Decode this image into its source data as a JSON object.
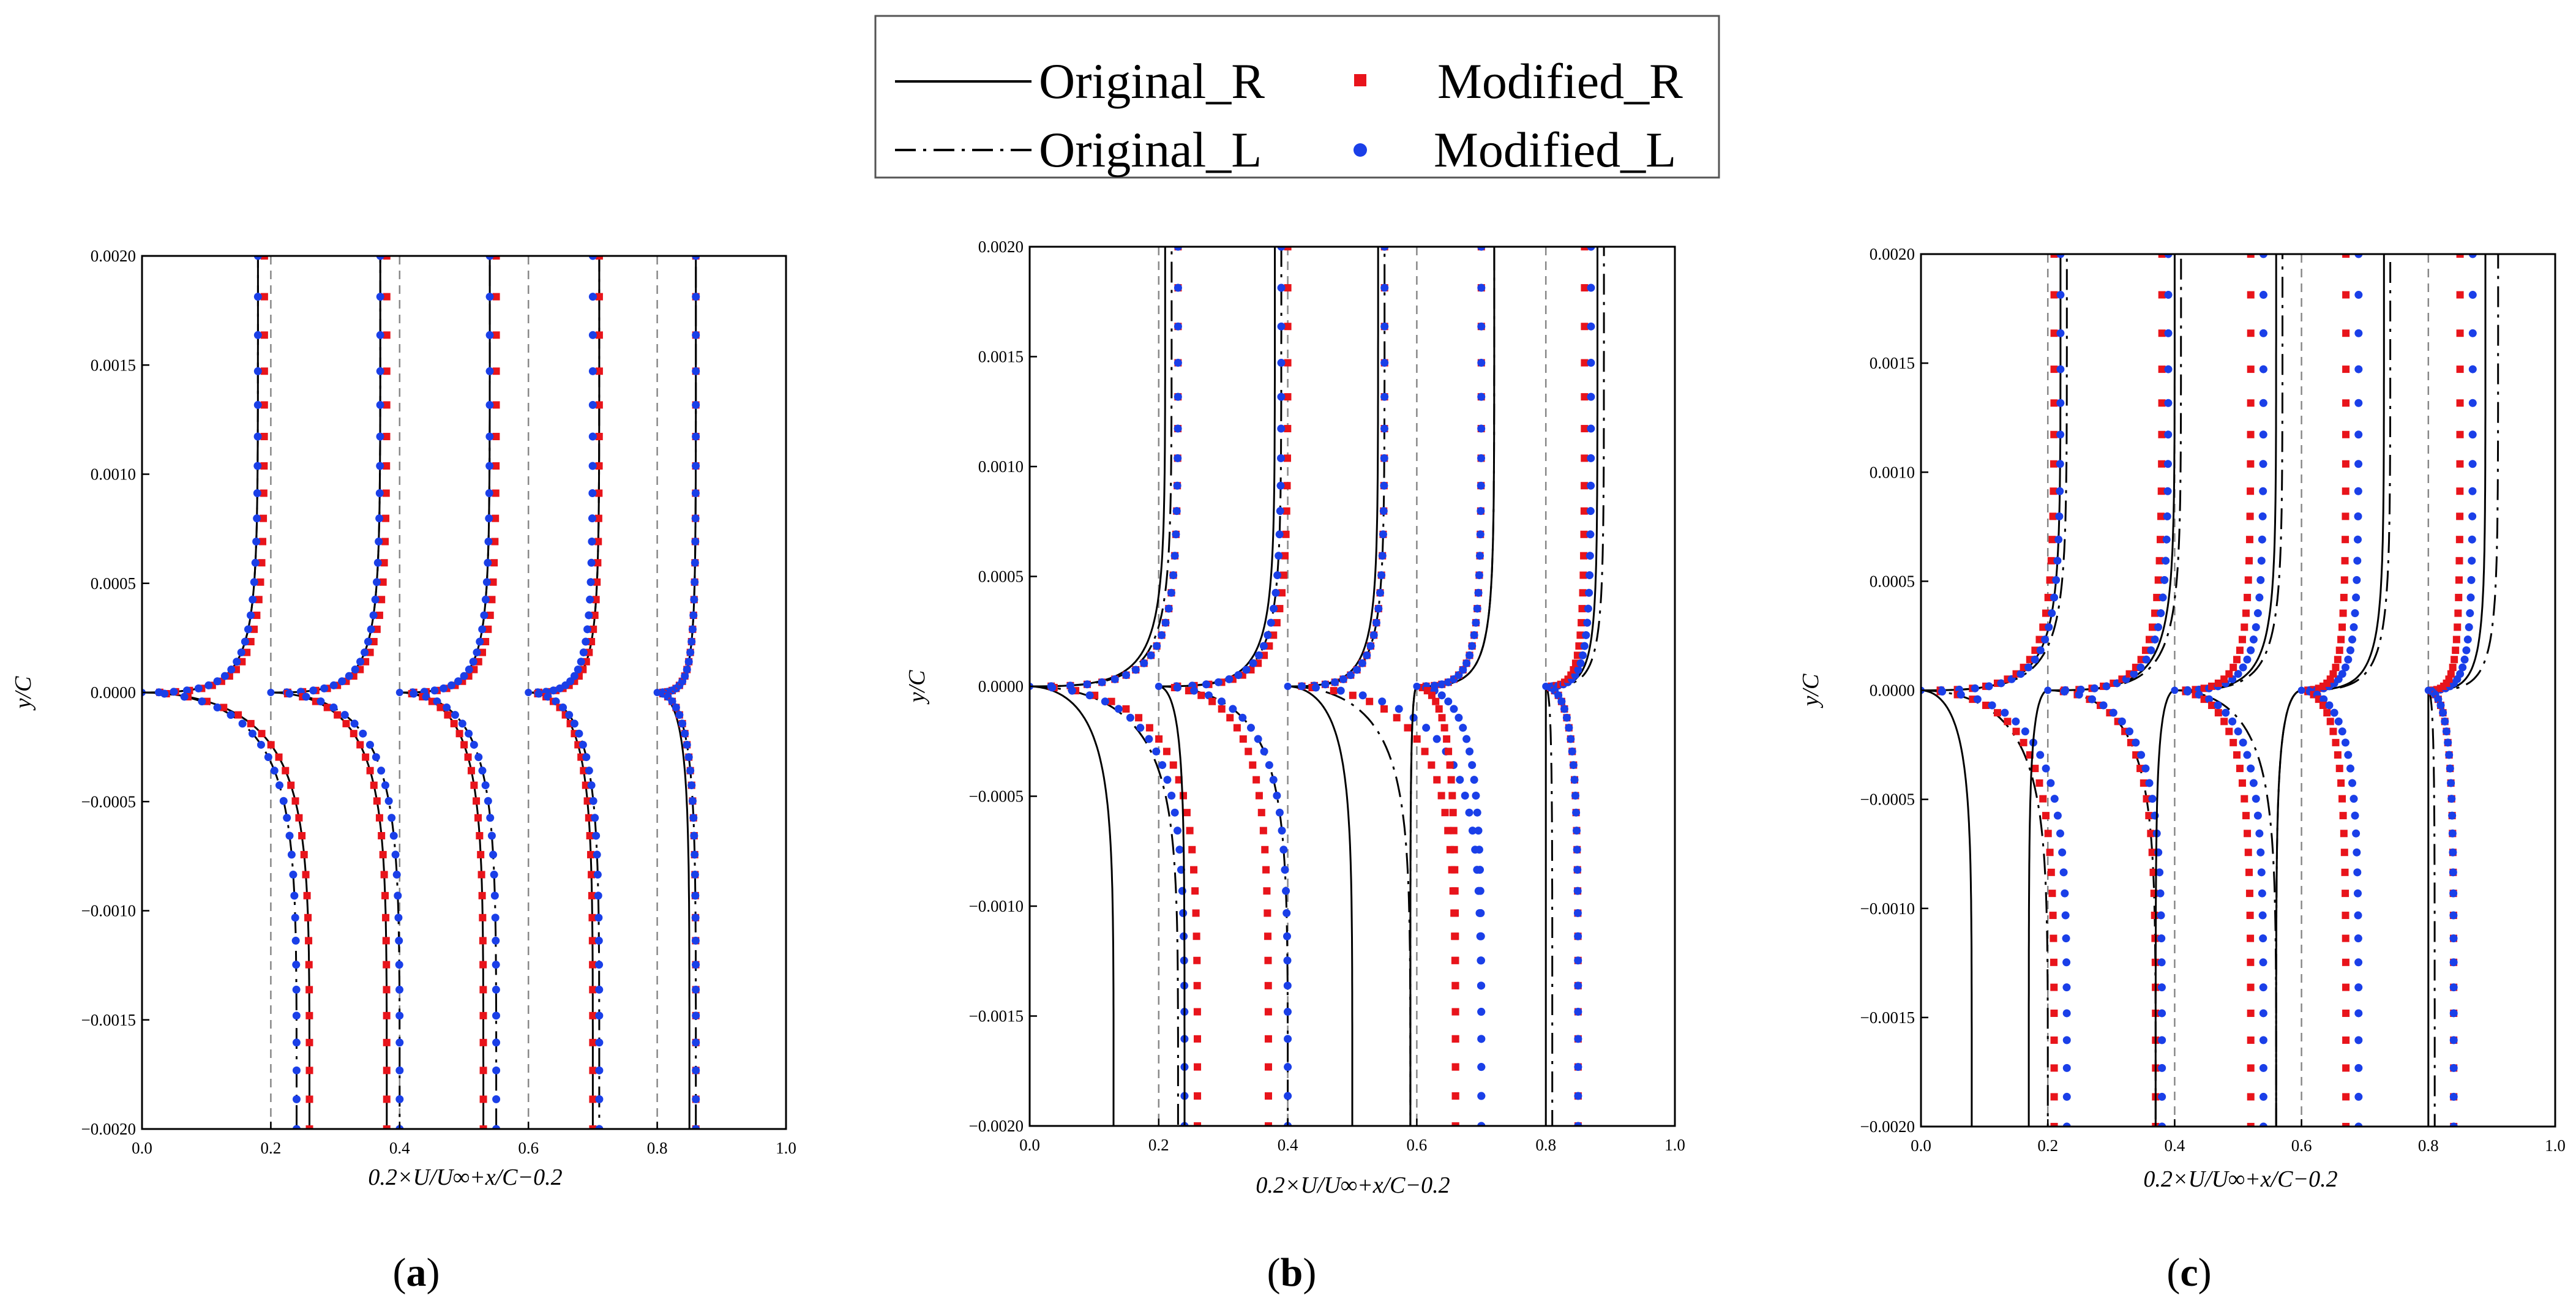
{
  "legend": {
    "entries": [
      {
        "label": "Original_R",
        "style": "solid"
      },
      {
        "label": "Original_L",
        "style": "dashdot"
      },
      {
        "label": "Modified_R",
        "style": "square",
        "color": "#e8141b"
      },
      {
        "label": "Modified_L",
        "style": "circle",
        "color": "#1a3fe8"
      }
    ]
  },
  "colors": {
    "modified_r": "#e8141b",
    "modified_l": "#1a3fe8",
    "line": "#000000",
    "ref": "#888888"
  },
  "chart_data": [
    {
      "type": "line",
      "panel_label": "(a)",
      "label_parts": [
        "(",
        "a",
        ")"
      ],
      "xlabel": "0.2×U/U∞+x/C−0.2",
      "ylabel": "y/C",
      "xlim": [
        0.0,
        1.0
      ],
      "ylim": [
        -0.002,
        0.002
      ],
      "x_ticks": [
        "0.0",
        "0.2",
        "0.4",
        "0.6",
        "0.8",
        "1.0"
      ],
      "y_ticks": [
        "-0.0020",
        "-0.0015",
        "-0.0010",
        "-0.0005",
        "0.0000",
        "0.0005",
        "0.0010",
        "0.0015",
        "0.0020"
      ],
      "reference_lines_x": [
        0.2,
        0.4,
        0.6,
        0.8
      ],
      "stations": [
        0.0,
        0.2,
        0.4,
        0.6,
        0.8
      ],
      "edge_values": {
        "original_r_upper": [
          0.18,
          0.37,
          0.54,
          0.71,
          0.86
        ],
        "original_l_upper": [
          0.18,
          0.37,
          0.54,
          0.71,
          0.86
        ],
        "modified_r_upper": [
          0.19,
          0.38,
          0.55,
          0.71,
          0.86
        ],
        "modified_l_upper": [
          0.18,
          0.37,
          0.54,
          0.7,
          0.86
        ],
        "original_r_lower": [
          0.26,
          0.38,
          0.53,
          0.7,
          0.85
        ],
        "original_l_lower": [
          0.24,
          0.4,
          0.55,
          0.71,
          0.86
        ],
        "modified_r_lower": [
          0.26,
          0.38,
          0.53,
          0.7,
          0.86
        ],
        "modified_l_lower": [
          0.24,
          0.4,
          0.55,
          0.71,
          0.86
        ]
      }
    },
    {
      "type": "line",
      "panel_label": "(b)",
      "label_parts": [
        "(",
        "b",
        ")"
      ],
      "xlabel": "0.2×U/U∞+x/C−0.2",
      "ylabel": "y/C",
      "xlim": [
        0.0,
        1.0
      ],
      "ylim": [
        -0.002,
        0.002
      ],
      "x_ticks": [
        "0.0",
        "0.2",
        "0.4",
        "0.6",
        "0.8",
        "1.0"
      ],
      "y_ticks": [
        "-0.0020",
        "-0.0015",
        "-0.0010",
        "-0.0005",
        "0.0000",
        "0.0005",
        "0.0010",
        "0.0015",
        "0.0020"
      ],
      "reference_lines_x": [
        0.2,
        0.4,
        0.6,
        0.8
      ],
      "stations": [
        0.0,
        0.2,
        0.4,
        0.6,
        0.8
      ],
      "edge_values": {
        "original_r_upper": [
          0.21,
          0.38,
          0.54,
          0.72,
          0.88
        ],
        "original_l_upper": [
          0.22,
          0.39,
          0.55,
          0.72,
          0.89
        ],
        "modified_r_upper": [
          0.23,
          0.4,
          0.55,
          0.7,
          0.86
        ],
        "modified_l_upper": [
          0.23,
          0.39,
          0.55,
          0.7,
          0.87
        ],
        "original_r_lower": [
          0.13,
          0.24,
          0.5,
          0.59,
          0.8
        ],
        "original_l_lower": [
          0.23,
          0.4,
          0.59,
          0.59,
          0.81
        ],
        "modified_r_lower": [
          0.26,
          0.37,
          0.66,
          0.66,
          0.85
        ],
        "modified_l_lower": [
          0.24,
          0.4,
          0.7,
          0.7,
          0.85
        ]
      }
    },
    {
      "type": "line",
      "panel_label": "(c)",
      "label_parts": [
        "(",
        "c",
        ")"
      ],
      "xlabel": "0.2×U/U∞+x/C−0.2",
      "ylabel": "y/C",
      "xlim": [
        0.0,
        1.0
      ],
      "ylim": [
        -0.002,
        0.002
      ],
      "x_ticks": [
        "0.0",
        "0.2",
        "0.4",
        "0.6",
        "0.8",
        "1.0"
      ],
      "y_ticks": [
        "-0.0020",
        "-0.0015",
        "-0.0010",
        "-0.0005",
        "0.0000",
        "0.0005",
        "0.0010",
        "0.0015",
        "0.0020"
      ],
      "reference_lines_x": [
        0.2,
        0.4,
        0.6,
        0.8
      ],
      "stations": [
        0.0,
        0.2,
        0.4,
        0.6,
        0.8
      ],
      "edge_values": {
        "original_r_upper": [
          0.22,
          0.4,
          0.56,
          0.73,
          0.89
        ],
        "original_l_upper": [
          0.23,
          0.41,
          0.57,
          0.74,
          0.91
        ],
        "modified_r_upper": [
          0.21,
          0.38,
          0.52,
          0.67,
          0.85
        ],
        "modified_l_upper": [
          0.22,
          0.39,
          0.54,
          0.69,
          0.87
        ],
        "original_r_lower": [
          0.08,
          0.17,
          0.37,
          0.56,
          0.8
        ],
        "original_l_lower": [
          0.2,
          0.37,
          0.56,
          0.56,
          0.81
        ],
        "modified_r_lower": [
          0.21,
          0.37,
          0.52,
          0.67,
          0.84
        ],
        "modified_l_lower": [
          0.23,
          0.38,
          0.54,
          0.69,
          0.84
        ]
      }
    }
  ]
}
